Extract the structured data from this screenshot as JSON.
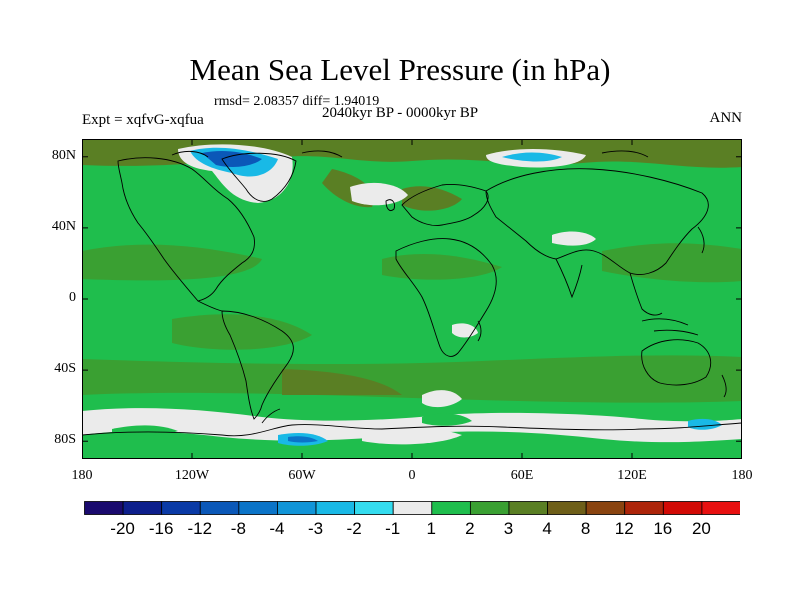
{
  "title": "Mean Sea Level Pressure (in hPa)",
  "stats": "rmsd= 2.08357 diff= 1.94019",
  "experiment": "Expt = xqfvG-xqfua",
  "period": "2040kyr BP - 0000kyr BP",
  "season": "ANN",
  "lat_labels": [
    "80N",
    "40N",
    "0",
    "40S",
    "80S"
  ],
  "lat_values": [
    80,
    40,
    0,
    -40,
    -80
  ],
  "lon_labels": [
    "180",
    "120W",
    "60W",
    "0",
    "60E",
    "120E",
    "180"
  ],
  "lon_values": [
    -180,
    -120,
    -60,
    0,
    60,
    120,
    180
  ],
  "colorbar": {
    "labels": [
      "-20",
      "-16",
      "-12",
      "-8",
      "-4",
      "-3",
      "-2",
      "-1",
      "1",
      "2",
      "3",
      "4",
      "8",
      "12",
      "16",
      "20"
    ],
    "colors": [
      "#1a0a6e",
      "#0d1f8c",
      "#0a3aa6",
      "#0b58b8",
      "#0b74c8",
      "#1195d8",
      "#19b9e6",
      "#34dcef",
      "#ebebeb",
      "#1fbe4d",
      "#3aa032",
      "#5a7f24",
      "#6e5f19",
      "#8a4410",
      "#ad250a",
      "#d20a05",
      "#e81010"
    ]
  },
  "regions": [
    {
      "name": "background",
      "level": 2
    },
    {
      "name": "arctic-band",
      "level": 4
    },
    {
      "name": "greenland-negative",
      "level": -4
    },
    {
      "name": "north-atlantic-white",
      "level": -1
    },
    {
      "name": "siberia-negative",
      "level": -3
    },
    {
      "name": "n-pacific-bands",
      "level": 3
    },
    {
      "name": "southern-ocean-band",
      "level": 3
    },
    {
      "name": "antarctic-white",
      "level": -1
    },
    {
      "name": "antarctic-negative",
      "level": -4
    }
  ]
}
